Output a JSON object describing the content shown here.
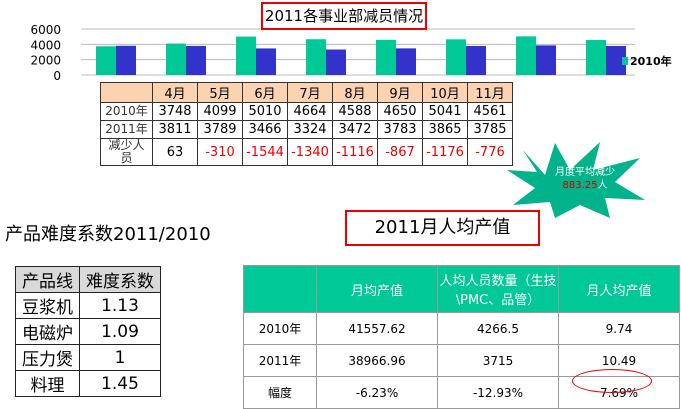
{
  "chart_data": {
    "type": "bar",
    "title": "2011各事业部减员情况",
    "categories": [
      "4月",
      "5月",
      "6月",
      "7月",
      "8月",
      "9月",
      "10月",
      "11月"
    ],
    "series": [
      {
        "name": "2010年",
        "color": "#00c896",
        "values": [
          3748,
          4099,
          5010,
          4664,
          4588,
          4650,
          5041,
          4561
        ]
      },
      {
        "color": "#3333cc",
        "values": [
          3811,
          3789,
          3466,
          3324,
          3472,
          3783,
          3865,
          3785
        ]
      }
    ],
    "yticks": [
      0,
      2000,
      4000,
      6000
    ],
    "ylim": [
      0,
      6000
    ],
    "grid": true,
    "legend": "right"
  },
  "month_table": {
    "headers": [
      "",
      "4月",
      "5月",
      "6月",
      "7月",
      "8月",
      "9月",
      "10月",
      "11月"
    ],
    "rows": [
      [
        "2010年",
        "3748",
        "4099",
        "5010",
        "4664",
        "4588",
        "4650",
        "5041",
        "4561"
      ],
      [
        "2011年",
        "3811",
        "3789",
        "3466",
        "3324",
        "3472",
        "3783",
        "3865",
        "3785"
      ],
      [
        "减少人员",
        "63",
        "-310",
        "-1544",
        "-1340",
        "-1116",
        "-867",
        "-1176",
        "-776"
      ]
    ]
  },
  "callout": {
    "label": "月度平均减少",
    "value": "883.25",
    "unit": "人"
  },
  "difficulty": {
    "title": "产品难度系数2011/2010",
    "headers": [
      "产品线",
      "难度系数"
    ],
    "rows": [
      [
        "豆浆机",
        "1.13"
      ],
      [
        "电磁炉",
        "1.09"
      ],
      [
        "压力煲",
        "1"
      ],
      [
        "料理",
        "1.45"
      ]
    ]
  },
  "avg_output": {
    "title": "2011月人均产值",
    "headers": [
      "",
      "月均产值",
      "人均人员数量（生技\\PMC、品管）",
      "月人均产值"
    ],
    "rows": [
      [
        "2010年",
        "41557.62",
        "4266.5",
        "9.74"
      ],
      [
        "2011年",
        "38966.96",
        "3715",
        "10.49"
      ],
      [
        "幅度",
        "-6.23%",
        "-12.93%",
        "7.69%"
      ]
    ]
  }
}
